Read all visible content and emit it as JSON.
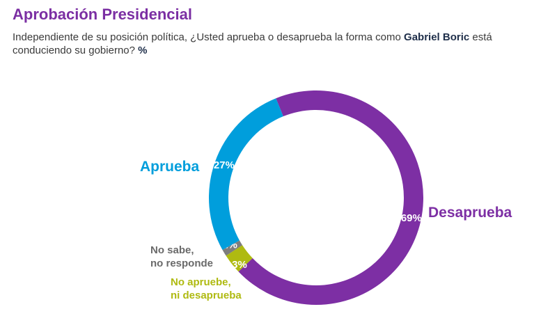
{
  "header": {
    "title": "Aprobación Presidencial",
    "question_pre": "Independiente de su posición política, ¿Usted aprueba o desaprueba la forma como ",
    "question_name": "Gabriel Boric",
    "question_post": " está conduciendo su gobierno? ",
    "question_unit": "%"
  },
  "colors": {
    "aprueba": "#009EDC",
    "desaprueba": "#7D2FA4",
    "no_sabe": "#7D7D7D",
    "ni": "#AFBA11"
  },
  "chart_data": {
    "type": "pie",
    "variant": "donut",
    "unit": "%",
    "slices": [
      {
        "label": "Desaprueba",
        "value": 69,
        "value_label": "69%",
        "color": "#7D2FA4"
      },
      {
        "label_lines": [
          "No apruebe,",
          "ni desaprueba"
        ],
        "value": 3,
        "value_label": "3%",
        "color": "#AFBA11"
      },
      {
        "label_lines": [
          "No sabe,",
          "no responde"
        ],
        "value": 1,
        "value_label": "1%",
        "color": "#7D7D7D"
      },
      {
        "label": "Aprueba",
        "value": 27,
        "value_label": "27%",
        "color": "#009EDC"
      }
    ]
  }
}
